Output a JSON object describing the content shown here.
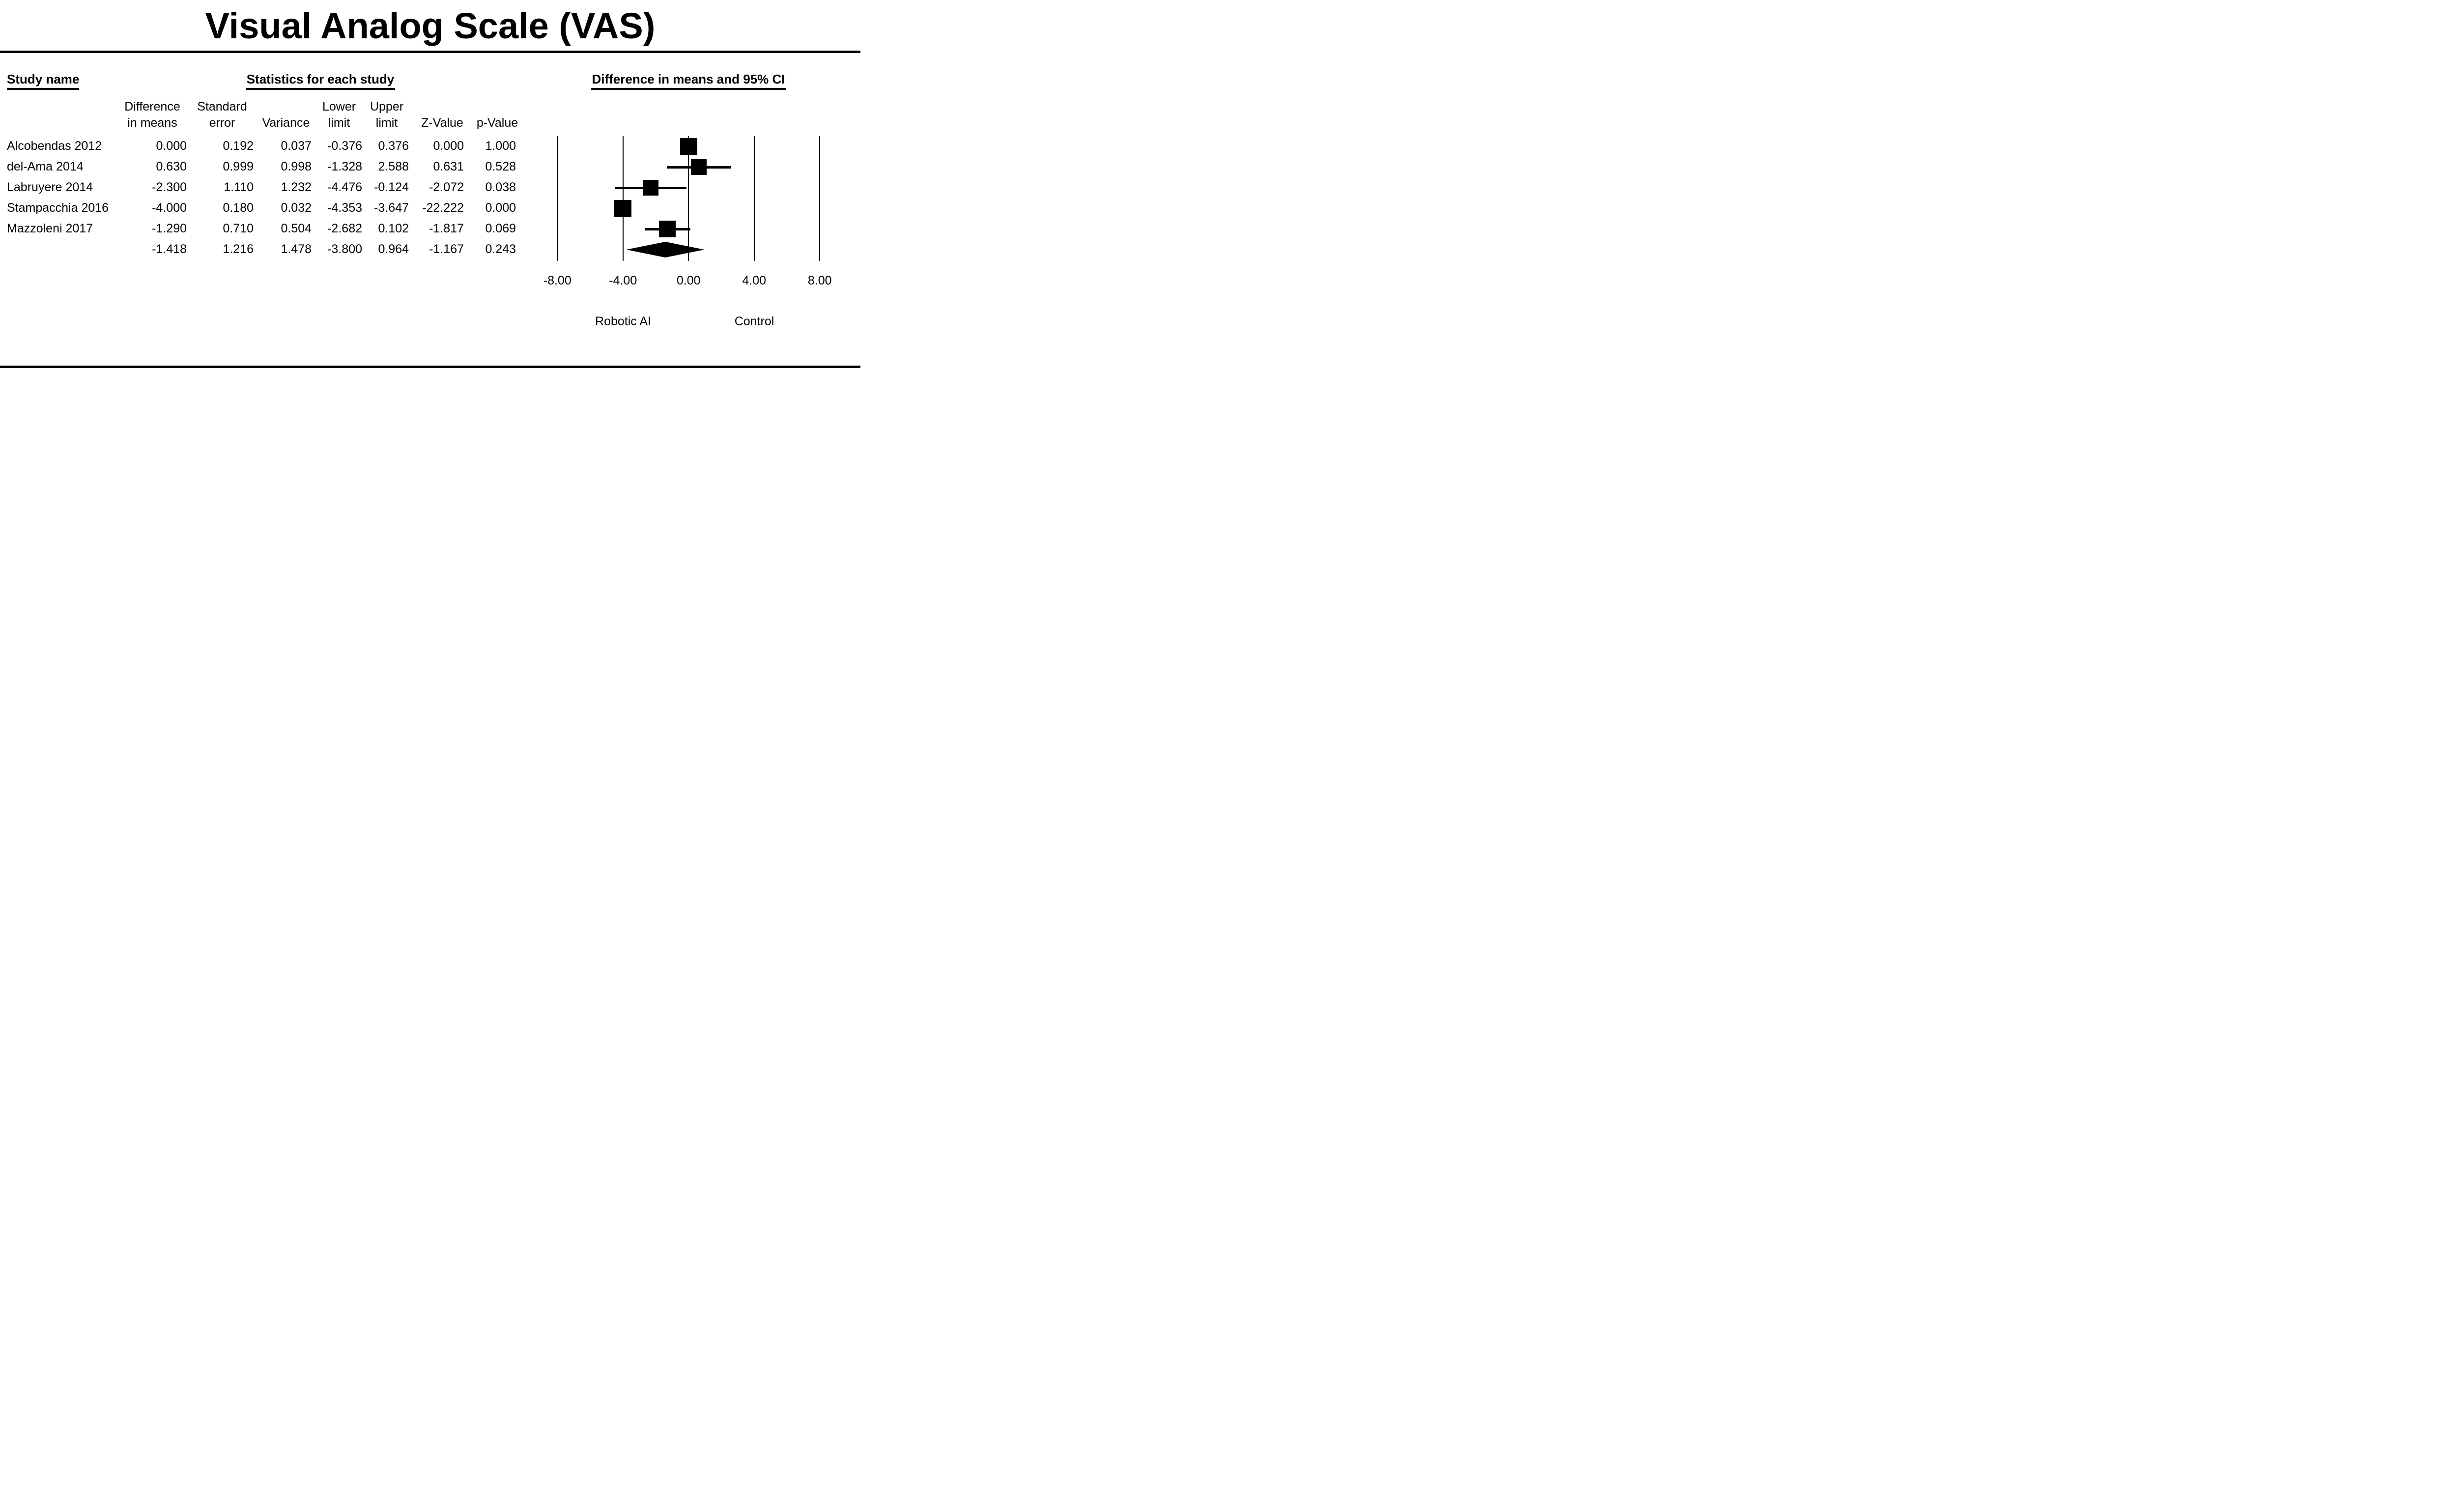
{
  "title": "Visual Analog Scale (VAS)",
  "table": {
    "study_header": "Study name",
    "stats_header": "Statistics for each study",
    "plot_header": "Difference in means and 95% CI",
    "col_diff_line1": "Difference",
    "col_diff_line2": "in means",
    "col_se_line1": "Standard",
    "col_se_line2": "error",
    "col_var": "Variance",
    "col_lower_line1": "Lower",
    "col_lower_line2": "limit",
    "col_upper_line1": "Upper",
    "col_upper_line2": "limit",
    "col_z": "Z-Value",
    "col_p": "p-Value",
    "rows": [
      {
        "name": "Alcobendas 2012",
        "diff": "0.000",
        "se": "0.192",
        "var": "0.037",
        "lower": "-0.376",
        "upper": "0.376",
        "z": "0.000",
        "p": "1.000"
      },
      {
        "name": "del-Ama 2014",
        "diff": "0.630",
        "se": "0.999",
        "var": "0.998",
        "lower": "-1.328",
        "upper": "2.588",
        "z": "0.631",
        "p": "0.528"
      },
      {
        "name": "Labruyere 2014",
        "diff": "-2.300",
        "se": "1.110",
        "var": "1.232",
        "lower": "-4.476",
        "upper": "-0.124",
        "z": "-2.072",
        "p": "0.038"
      },
      {
        "name": "Stampacchia 2016",
        "diff": "-4.000",
        "se": "0.180",
        "var": "0.032",
        "lower": "-4.353",
        "upper": "-3.647",
        "z": "-22.222",
        "p": "0.000"
      },
      {
        "name": "Mazzoleni 2017",
        "diff": "-1.290",
        "se": "0.710",
        "var": "0.504",
        "lower": "-2.682",
        "upper": "0.102",
        "z": "-1.817",
        "p": "0.069"
      },
      {
        "name": "",
        "diff": "-1.418",
        "se": "1.216",
        "var": "1.478",
        "lower": "-3.800",
        "upper": "0.964",
        "z": "-1.167",
        "p": "0.243"
      }
    ]
  },
  "chart_data": {
    "type": "forest",
    "title": "Visual Analog Scale (VAS)",
    "effect_measure": "Difference in means",
    "x_axis": {
      "range": [
        -8,
        8
      ],
      "ticks": [
        -8,
        -4,
        0,
        4,
        8
      ],
      "tick_labels": [
        "-8.00",
        "-4.00",
        "0.00",
        "4.00",
        "8.00"
      ]
    },
    "group_labels": {
      "left": "Robotic AI",
      "right": "Control"
    },
    "studies": [
      {
        "name": "Alcobendas 2012",
        "mean": 0.0,
        "lower": -0.376,
        "upper": 0.376,
        "size": 35
      },
      {
        "name": "del-Ama 2014",
        "mean": 0.63,
        "lower": -1.328,
        "upper": 2.588,
        "size": 32
      },
      {
        "name": "Labruyere 2014",
        "mean": -2.3,
        "lower": -4.476,
        "upper": -0.124,
        "size": 32
      },
      {
        "name": "Stampacchia 2016",
        "mean": -4.0,
        "lower": -4.353,
        "upper": -3.647,
        "size": 35
      },
      {
        "name": "Mazzoleni 2017",
        "mean": -1.29,
        "lower": -2.682,
        "upper": 0.102,
        "size": 34
      }
    ],
    "overall": {
      "mean": -1.418,
      "lower": -3.8,
      "upper": 0.964
    }
  }
}
